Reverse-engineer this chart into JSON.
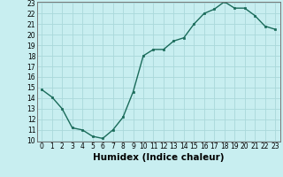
{
  "x": [
    0,
    1,
    2,
    3,
    4,
    5,
    6,
    7,
    8,
    9,
    10,
    11,
    12,
    13,
    14,
    15,
    16,
    17,
    18,
    19,
    20,
    21,
    22,
    23
  ],
  "y": [
    14.8,
    14.1,
    13.0,
    11.2,
    11.0,
    10.4,
    10.2,
    11.0,
    12.2,
    14.6,
    18.0,
    18.6,
    18.6,
    19.4,
    19.7,
    21.0,
    22.0,
    22.4,
    23.1,
    22.5,
    22.5,
    21.8,
    20.8,
    20.5
  ],
  "line_color": "#1a6b5a",
  "marker": "s",
  "marker_size": 2,
  "bg_color": "#c8eef0",
  "grid_color": "#aad8da",
  "xlabel": "Humidex (Indice chaleur)",
  "ylim": [
    10,
    23
  ],
  "xlim": [
    -0.5,
    23.5
  ],
  "yticks": [
    10,
    11,
    12,
    13,
    14,
    15,
    16,
    17,
    18,
    19,
    20,
    21,
    22,
    23
  ],
  "xticks": [
    0,
    1,
    2,
    3,
    4,
    5,
    6,
    7,
    8,
    9,
    10,
    11,
    12,
    13,
    14,
    15,
    16,
    17,
    18,
    19,
    20,
    21,
    22,
    23
  ],
  "tick_fontsize": 5.5,
  "label_fontsize": 7.5,
  "linewidth": 1.0
}
